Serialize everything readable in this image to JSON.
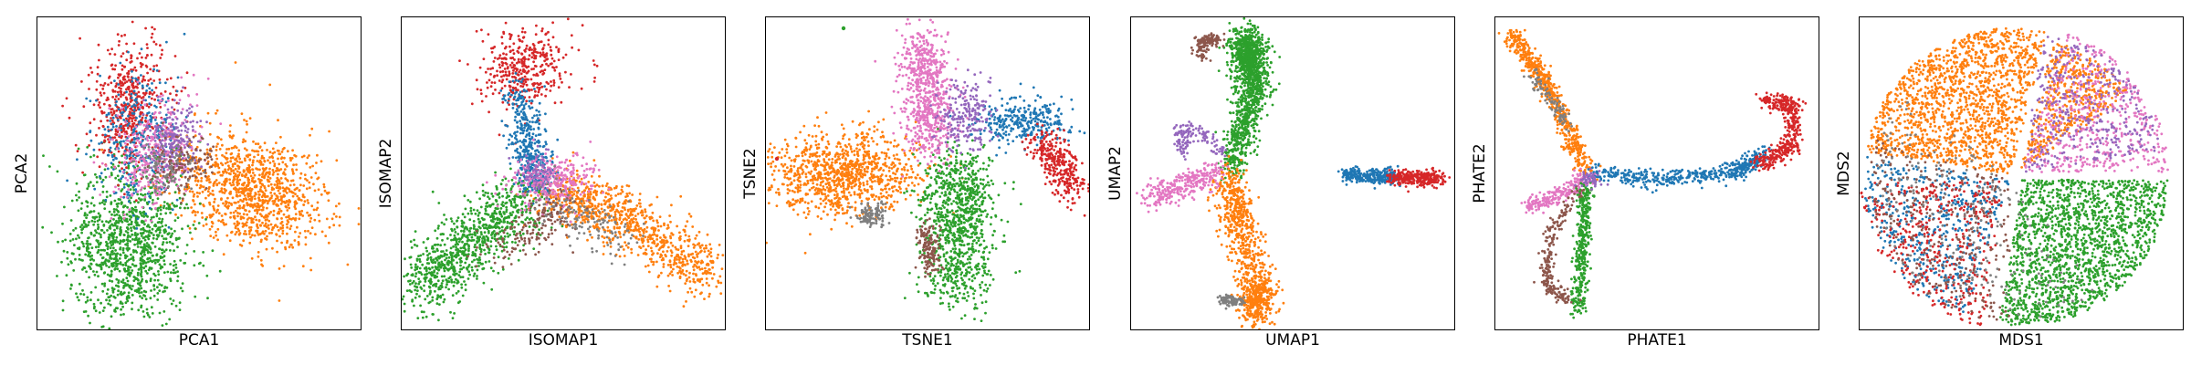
{
  "chart_data": [
    {
      "type": "scatter",
      "xlabel": "PCA1",
      "ylabel": "PCA2",
      "xticks": [],
      "yticks": [],
      "grid": false
    },
    {
      "type": "scatter",
      "xlabel": "ISOMAP1",
      "ylabel": "ISOMAP2",
      "xticks": [],
      "yticks": [],
      "grid": false
    },
    {
      "type": "scatter",
      "xlabel": "TSNE1",
      "ylabel": "TSNE2",
      "xticks": [],
      "yticks": [],
      "grid": false
    },
    {
      "type": "scatter",
      "xlabel": "UMAP1",
      "ylabel": "UMAP2",
      "xticks": [],
      "yticks": [],
      "grid": false
    },
    {
      "type": "scatter",
      "xlabel": "PHATE1",
      "ylabel": "PHATE2",
      "xticks": [],
      "yticks": [],
      "grid": false
    },
    {
      "type": "scatter",
      "xlabel": "MDS1",
      "ylabel": "MDS2",
      "xticks": [],
      "yticks": [],
      "grid": false
    }
  ],
  "colors": {
    "blue": "#1f77b4",
    "orange": "#ff7f0e",
    "green": "#2ca02c",
    "red": "#d62728",
    "purple": "#9467bd",
    "brown": "#8c564b",
    "pink": "#e377c2",
    "gray": "#7f7f7f"
  }
}
